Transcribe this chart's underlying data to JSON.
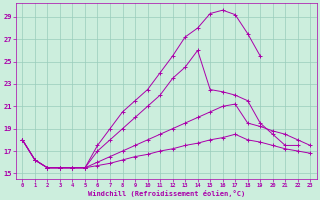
{
  "xlabel": "Windchill (Refroidissement éolien,°C)",
  "x_ticks": [
    0,
    1,
    2,
    3,
    4,
    5,
    6,
    7,
    8,
    9,
    10,
    11,
    12,
    13,
    14,
    15,
    16,
    17,
    18,
    19,
    20,
    21,
    22,
    23
  ],
  "ylim": [
    14.5,
    30.2
  ],
  "y_ticks": [
    15,
    17,
    19,
    21,
    23,
    25,
    27,
    29
  ],
  "bg_color": "#cceedd",
  "line_color": "#aa00aa",
  "grid_color": "#99ccbb",
  "curves": [
    [
      18.0,
      16.2,
      15.5,
      15.5,
      15.5,
      15.5,
      17.5,
      19.0,
      20.5,
      21.5,
      22.5,
      24.0,
      25.5,
      27.2,
      28.0,
      29.3,
      29.6,
      29.2,
      27.5,
      25.5,
      null,
      null,
      null,
      null
    ],
    [
      18.0,
      16.2,
      15.5,
      15.5,
      15.5,
      15.5,
      17.0,
      18.0,
      19.0,
      20.0,
      21.0,
      22.0,
      23.5,
      24.5,
      26.0,
      22.5,
      22.3,
      22.0,
      21.5,
      19.5,
      18.5,
      17.5,
      17.5,
      null
    ],
    [
      18.0,
      16.2,
      15.5,
      15.5,
      15.5,
      15.5,
      16.0,
      16.5,
      17.0,
      17.5,
      18.0,
      18.5,
      19.0,
      19.5,
      20.0,
      20.5,
      21.0,
      21.2,
      19.5,
      19.2,
      18.8,
      18.5,
      18.0,
      17.5
    ],
    [
      18.0,
      16.2,
      15.5,
      15.5,
      15.5,
      15.5,
      15.7,
      15.9,
      16.2,
      16.5,
      16.7,
      17.0,
      17.2,
      17.5,
      17.7,
      18.0,
      18.2,
      18.5,
      18.0,
      17.8,
      17.5,
      17.2,
      17.0,
      16.8
    ]
  ]
}
